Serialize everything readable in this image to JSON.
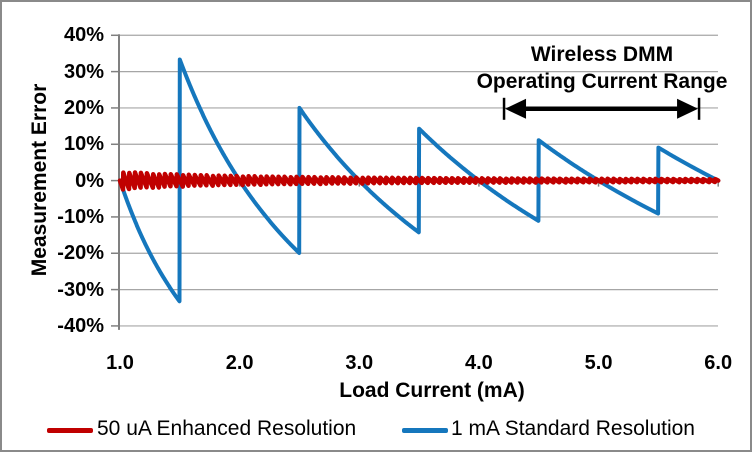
{
  "chart_data": {
    "type": "line",
    "title": "",
    "ylabel": "Measurement Error",
    "xlabel": "Load Current (mA)",
    "xlim": [
      1.0,
      6.0
    ],
    "ylim": [
      -40,
      40
    ],
    "grid": "horizontal-gridlines-on",
    "legend_position": "bottom",
    "ytick_values": [
      40,
      30,
      20,
      10,
      0,
      -10,
      -20,
      -30,
      -40
    ],
    "ytick_labels": [
      "40%",
      "30%",
      "20%",
      "10%",
      "0%",
      "-10%",
      "-20%",
      "-30%",
      "-40%"
    ],
    "xtick_values": [
      1,
      2,
      3,
      4,
      5,
      6
    ],
    "xtick_labels": [
      "1.0",
      "2.0",
      "3.0",
      "4.0",
      "5.0",
      "6.0"
    ],
    "series": [
      {
        "name": "50 uA Enhanced Resolution",
        "color": "#C00000",
        "model": "quantization_error_pct",
        "resolution_mA": 0.05,
        "description": "dense sawtooth oscillating about 0%; envelope shrinks from ±2.5% at 1.0 mA to ±0.4% at 6.0 mA",
        "key_points_pct": [
          [
            1.0,
            2.5
          ],
          [
            1.0,
            -2.5
          ],
          [
            6.0,
            0.4
          ],
          [
            6.0,
            -0.4
          ]
        ]
      },
      {
        "name": "1 mA Standard Resolution",
        "color": "#1577BD",
        "model": "quantization_error_pct",
        "resolution_mA": 1.0,
        "key_points_pct": [
          [
            1.0,
            0
          ],
          [
            1.5,
            -33.3
          ],
          [
            1.5,
            33.3
          ],
          [
            2.0,
            0
          ],
          [
            2.5,
            -20.0
          ],
          [
            2.5,
            20.0
          ],
          [
            3.0,
            0
          ],
          [
            3.5,
            -14.3
          ],
          [
            3.5,
            14.3
          ],
          [
            4.0,
            0
          ],
          [
            4.5,
            -11.1
          ],
          [
            4.5,
            11.1
          ],
          [
            5.0,
            0
          ],
          [
            5.5,
            -9.1
          ],
          [
            5.5,
            9.1
          ],
          [
            6.0,
            0
          ]
        ]
      }
    ],
    "annotation": {
      "line1": "Wireless DMM",
      "line2": "Operating Current Range",
      "arrow_from_mA": 4.21,
      "arrow_to_mA": 5.84,
      "arrow_color": "#000000"
    },
    "colors": {
      "gridline": "#A6A6A6",
      "axis": "#808080",
      "border": "#8A8A8A",
      "text": "#000000"
    }
  }
}
